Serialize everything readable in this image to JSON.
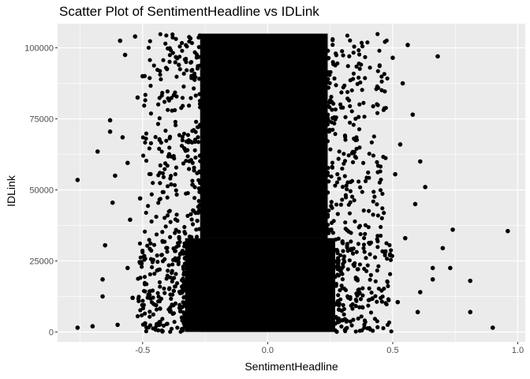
{
  "chart_data": {
    "type": "scatter",
    "title": "Scatter Plot of SentimentHeadline vs IDLink",
    "xlabel": "SentimentHeadline",
    "ylabel": "IDLink",
    "xlim": [
      -0.84,
      1.03
    ],
    "ylim": [
      -3500,
      108500
    ],
    "x_ticks": [
      -0.5,
      0.0,
      0.5,
      1.0
    ],
    "x_tick_labels": [
      "-0.5",
      "0.0",
      "0.5",
      "1.0"
    ],
    "y_ticks": [
      0,
      25000,
      50000,
      75000,
      100000
    ],
    "y_tick_labels": [
      "0",
      "25000",
      "50000",
      "75000",
      "100000"
    ],
    "grid": true,
    "panel_background": "#ebebeb",
    "grid_color": "#ffffff",
    "point_color": "#000000",
    "dense_regions": [
      {
        "x_range": [
          -0.27,
          0.25
        ],
        "y_range": [
          0,
          33000
        ]
      },
      {
        "x_range": [
          -0.27,
          0.24
        ],
        "y_range": [
          33000,
          105000
        ]
      },
      {
        "x_range": [
          -0.33,
          0.27
        ],
        "y_range": [
          0,
          33000
        ]
      }
    ],
    "points": [
      {
        "x": -0.76,
        "y": 53500
      },
      {
        "x": -0.76,
        "y": 1500
      },
      {
        "x": -0.7,
        "y": 2000
      },
      {
        "x": -0.68,
        "y": 63500
      },
      {
        "x": -0.66,
        "y": 12500
      },
      {
        "x": -0.66,
        "y": 18500
      },
      {
        "x": -0.65,
        "y": 30500
      },
      {
        "x": -0.63,
        "y": 74500
      },
      {
        "x": -0.63,
        "y": 70500
      },
      {
        "x": -0.62,
        "y": 45500
      },
      {
        "x": -0.61,
        "y": 55000
      },
      {
        "x": -0.6,
        "y": 2500
      },
      {
        "x": -0.59,
        "y": 102500
      },
      {
        "x": -0.58,
        "y": 68500
      },
      {
        "x": -0.57,
        "y": 97500
      },
      {
        "x": -0.56,
        "y": 59500
      },
      {
        "x": -0.56,
        "y": 22500
      },
      {
        "x": -0.55,
        "y": 39500
      },
      {
        "x": -0.54,
        "y": 12000
      },
      {
        "x": -0.53,
        "y": 104000
      },
      {
        "x": -0.52,
        "y": 82500
      },
      {
        "x": -0.51,
        "y": 47000
      },
      {
        "x": -0.5,
        "y": 90000
      },
      {
        "x": -0.49,
        "y": 3000
      },
      {
        "x": 0.96,
        "y": 35500
      },
      {
        "x": 0.9,
        "y": 1500
      },
      {
        "x": 0.81,
        "y": 18000
      },
      {
        "x": 0.81,
        "y": 7000
      },
      {
        "x": 0.74,
        "y": 36000
      },
      {
        "x": 0.73,
        "y": 22500
      },
      {
        "x": 0.7,
        "y": 29500
      },
      {
        "x": 0.68,
        "y": 97000
      },
      {
        "x": 0.66,
        "y": 22500
      },
      {
        "x": 0.66,
        "y": 18500
      },
      {
        "x": 0.63,
        "y": 51000
      },
      {
        "x": 0.61,
        "y": 60000
      },
      {
        "x": 0.61,
        "y": 14000
      },
      {
        "x": 0.6,
        "y": 7000
      },
      {
        "x": 0.59,
        "y": 45000
      },
      {
        "x": 0.58,
        "y": 76500
      },
      {
        "x": 0.56,
        "y": 101000
      },
      {
        "x": 0.55,
        "y": 33000
      },
      {
        "x": 0.54,
        "y": 87500
      },
      {
        "x": 0.53,
        "y": 66000
      },
      {
        "x": 0.52,
        "y": 10500
      },
      {
        "x": 0.51,
        "y": 55500
      },
      {
        "x": 0.5,
        "y": 96500
      },
      {
        "x": 0.49,
        "y": 27000
      }
    ]
  }
}
